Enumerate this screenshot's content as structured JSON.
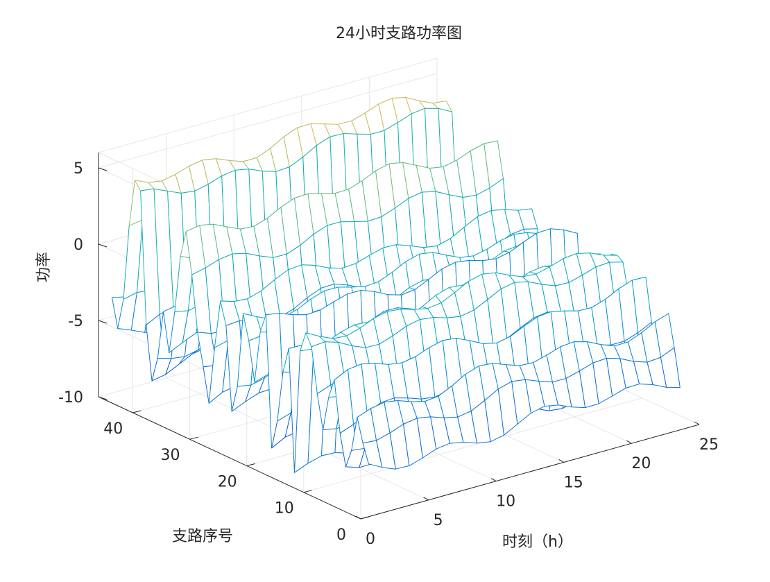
{
  "chart_data": {
    "type": "surface3d",
    "title": "24小时支路功率图",
    "xlabel": "时刻（h）",
    "ylabel": "支路序号",
    "zlabel": "功率",
    "xlim": [
      0,
      25
    ],
    "ylim": [
      0,
      46
    ],
    "zlim": [
      -10,
      6
    ],
    "xticks": [
      0,
      5,
      10,
      15,
      20,
      25
    ],
    "yticks": [
      0,
      10,
      20,
      30,
      40
    ],
    "zticks": [
      -10,
      -5,
      0,
      5
    ],
    "xtick_labels": [
      "0",
      "5",
      "10",
      "15",
      "20",
      "25"
    ],
    "ytick_labels": [
      "0",
      "10",
      "20",
      "30",
      "40"
    ],
    "ztick_labels": [
      "-10",
      "-5",
      "0",
      "5"
    ],
    "grid": true,
    "colormap": "parula",
    "hours": [
      1,
      24
    ],
    "branches": [
      1,
      46
    ],
    "branch_profiles": [
      {
        "branch": 1,
        "level": -7.0
      },
      {
        "branch": 2,
        "level": -5.0
      },
      {
        "branch": 3,
        "level": -3.6
      },
      {
        "branch": 4,
        "level": -6.4
      },
      {
        "branch": 5,
        "level": -7.2
      },
      {
        "branch": 6,
        "level": -4.8
      },
      {
        "branch": 7,
        "level": -2.2
      },
      {
        "branch": 8,
        "level": -4.0
      },
      {
        "branch": 9,
        "level": -5.8
      },
      {
        "branch": 10,
        "level": -3.5
      },
      {
        "branch": 11,
        "level": -1.2
      },
      {
        "branch": 12,
        "level": -0.3
      },
      {
        "branch": 13,
        "level": -0.8
      },
      {
        "branch": 14,
        "level": -9.0
      },
      {
        "branch": 15,
        "level": -1.6
      },
      {
        "branch": 16,
        "level": -3.0
      },
      {
        "branch": 17,
        "level": -6.0
      },
      {
        "branch": 18,
        "level": -8.6
      },
      {
        "branch": 19,
        "level": -0.6
      },
      {
        "branch": 20,
        "level": -1.4
      },
      {
        "branch": 21,
        "level": -4.6
      },
      {
        "branch": 22,
        "level": -2.6
      },
      {
        "branch": 23,
        "level": -0.9
      },
      {
        "branch": 24,
        "level": -5.0
      },
      {
        "branch": 25,
        "level": -6.8
      },
      {
        "branch": 26,
        "level": -2.0
      },
      {
        "branch": 27,
        "level": -0.4
      },
      {
        "branch": 28,
        "level": -3.2
      },
      {
        "branch": 29,
        "level": -7.6
      },
      {
        "branch": 30,
        "level": -6.0
      },
      {
        "branch": 31,
        "level": -3.4
      },
      {
        "branch": 32,
        "level": 0.6
      },
      {
        "branch": 33,
        "level": 2.8
      },
      {
        "branch": 34,
        "level": 1.0
      },
      {
        "branch": 35,
        "level": -2.0
      },
      {
        "branch": 36,
        "level": -4.8
      },
      {
        "branch": 37,
        "level": -3.0
      },
      {
        "branch": 38,
        "level": -6.2
      },
      {
        "branch": 39,
        "level": -7.4
      },
      {
        "branch": 40,
        "level": -4.4
      },
      {
        "branch": 41,
        "level": 3.6
      },
      {
        "branch": 42,
        "level": 4.6
      },
      {
        "branch": 43,
        "level": 2.0
      },
      {
        "branch": 44,
        "level": -3.4
      },
      {
        "branch": 45,
        "level": -5.6
      },
      {
        "branch": 46,
        "level": -3.0
      }
    ]
  }
}
